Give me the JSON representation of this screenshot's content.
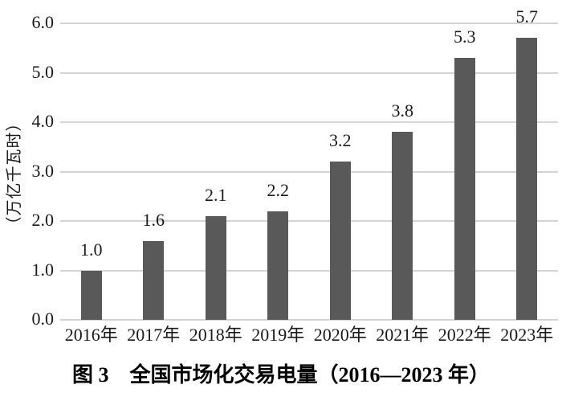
{
  "figure": {
    "caption": "图 3　全国市场化交易电量（2016—2023 年）"
  },
  "chart_data": {
    "type": "bar",
    "title": "图 3　全国市场化交易电量（2016—2023 年）",
    "categories": [
      "2016年",
      "2017年",
      "2018年",
      "2019年",
      "2020年",
      "2021年",
      "2022年",
      "2023年"
    ],
    "values": [
      1.0,
      1.6,
      2.1,
      2.2,
      3.2,
      3.8,
      5.3,
      5.7
    ],
    "value_labels": [
      "1.0",
      "1.6",
      "2.1",
      "2.2",
      "3.2",
      "3.8",
      "5.3",
      "5.7"
    ],
    "xlabel": "",
    "ylabel": "（万亿千瓦时）",
    "ylim": [
      0,
      6
    ],
    "ytick_labels": [
      "0.0",
      "1.0",
      "2.0",
      "3.0",
      "4.0",
      "5.0",
      "6.0"
    ],
    "grid": true,
    "legend_position": "none",
    "bar_color": "#595959",
    "gridline_color": "#d5d5d5",
    "text_color": "#1a1a1a"
  }
}
